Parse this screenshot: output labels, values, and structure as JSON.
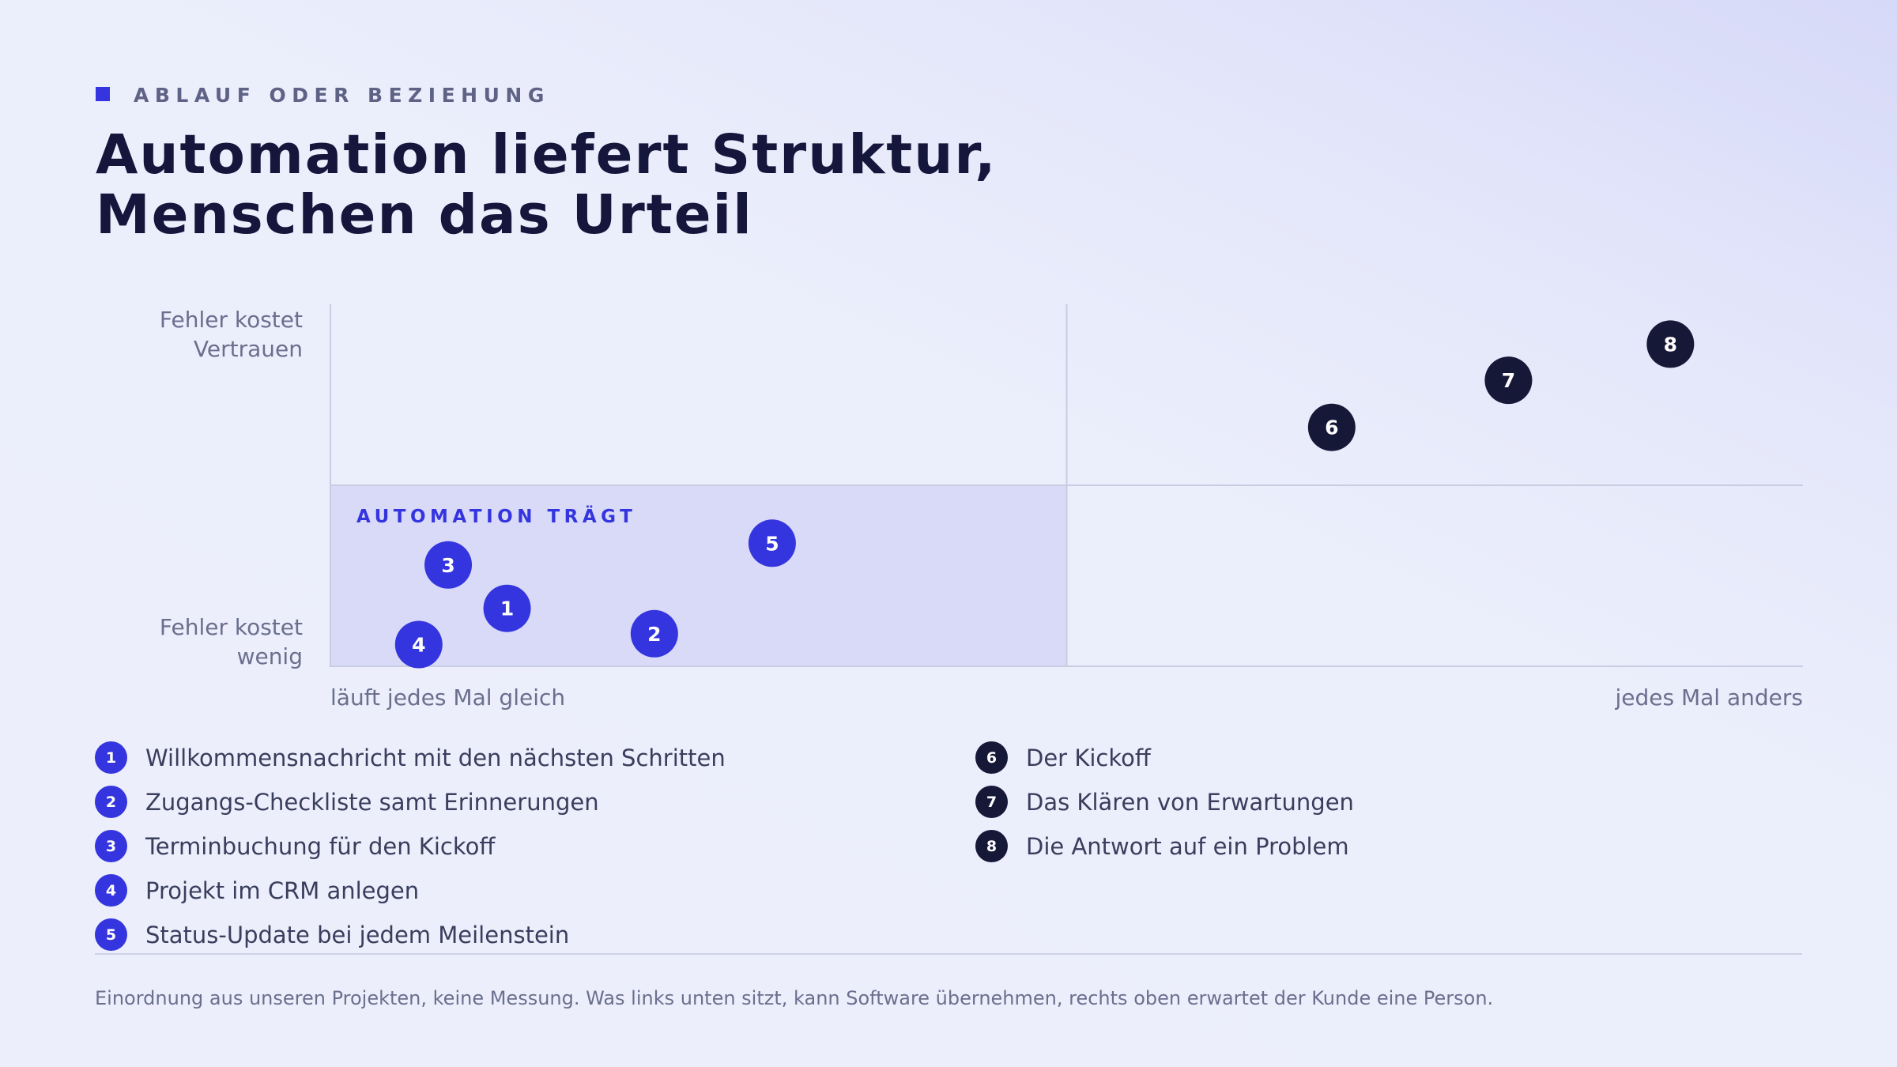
{
  "eyebrow": "ABLAUF ODER BEZIEHUNG",
  "title_line1": "Automation liefert Struktur,",
  "title_line2": "Menschen das Urteil",
  "colors": {
    "automation": "#3535df",
    "human": "#161838",
    "zone_fill": "#d8daf7",
    "zone_border": "#b3b6ec",
    "grid": "#c9cce2",
    "axis_text": "#6b6f8e"
  },
  "chart_data": {
    "type": "scatter",
    "xlabel_left": "läuft jedes Mal gleich",
    "xlabel_right": "jedes Mal anders",
    "ylabel_top": [
      "Fehler kostet",
      "Vertrauen"
    ],
    "ylabel_bottom": [
      "Fehler kostet",
      "wenig"
    ],
    "xlim": [
      0,
      1
    ],
    "ylim": [
      0,
      1
    ],
    "quadrant_split": [
      0.5,
      0.5
    ],
    "zone": {
      "label": "AUTOMATION TRÄGT",
      "x_range": [
        0,
        0.5
      ],
      "y_range": [
        0,
        0.5
      ]
    },
    "series": [
      {
        "group": "automation",
        "points": [
          {
            "id": "1",
            "x": 0.12,
            "y": 0.16
          },
          {
            "id": "2",
            "x": 0.22,
            "y": 0.09
          },
          {
            "id": "3",
            "x": 0.08,
            "y": 0.28
          },
          {
            "id": "4",
            "x": 0.06,
            "y": 0.06
          },
          {
            "id": "5",
            "x": 0.3,
            "y": 0.34
          }
        ]
      },
      {
        "group": "human",
        "points": [
          {
            "id": "6",
            "x": 0.68,
            "y": 0.66
          },
          {
            "id": "7",
            "x": 0.8,
            "y": 0.79
          },
          {
            "id": "8",
            "x": 0.91,
            "y": 0.89
          }
        ]
      }
    ]
  },
  "legend_left": [
    {
      "num": "1",
      "label": "Willkommensnachricht mit den nächsten Schritten"
    },
    {
      "num": "2",
      "label": "Zugangs-Checkliste samt Erinnerungen"
    },
    {
      "num": "3",
      "label": "Terminbuchung für den Kickoff"
    },
    {
      "num": "4",
      "label": "Projekt im CRM anlegen"
    },
    {
      "num": "5",
      "label": "Status-Update bei jedem Meilenstein"
    }
  ],
  "legend_right": [
    {
      "num": "6",
      "label": "Der Kickoff"
    },
    {
      "num": "7",
      "label": "Das Klären von Erwartungen"
    },
    {
      "num": "8",
      "label": "Die Antwort auf ein Problem"
    }
  ],
  "footer": "Einordnung aus unseren Projekten, keine Messung. Was links unten sitzt, kann Software übernehmen, rechts oben erwartet der Kunde eine Person."
}
